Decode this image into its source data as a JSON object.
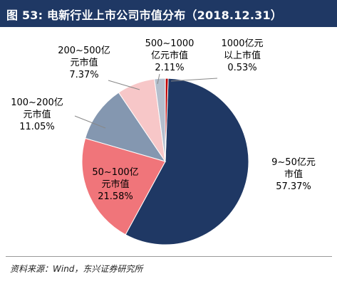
{
  "header": {
    "title": "图 53: 电新行业上市公司市值分布（2018.12.31）"
  },
  "chart_data": {
    "type": "pie",
    "slices": [
      {
        "label_lines": [
          "9~50亿元",
          "市值"
        ],
        "value": 57.37,
        "pct": "57.37%",
        "color": "#1f3864"
      },
      {
        "label_lines": [
          "50~100亿",
          "元市值"
        ],
        "value": 21.58,
        "pct": "21.58%",
        "color": "#f0757a"
      },
      {
        "label_lines": [
          "100~200亿",
          "元市值"
        ],
        "value": 11.05,
        "pct": "11.05%",
        "color": "#8497b0"
      },
      {
        "label_lines": [
          "200~500亿",
          "元市值"
        ],
        "value": 7.37,
        "pct": "7.37%",
        "color": "#f7c7c8"
      },
      {
        "label_lines": [
          "500~1000",
          "亿元市值"
        ],
        "value": 2.11,
        "pct": "2.11%",
        "color": "#b4bfcd"
      },
      {
        "label_lines": [
          "1000亿元",
          "以上市值"
        ],
        "value": 0.53,
        "pct": "0.53%",
        "color": "#c00000"
      }
    ]
  },
  "footer": {
    "source": "资料来源：Wind，东兴证券研究所"
  }
}
